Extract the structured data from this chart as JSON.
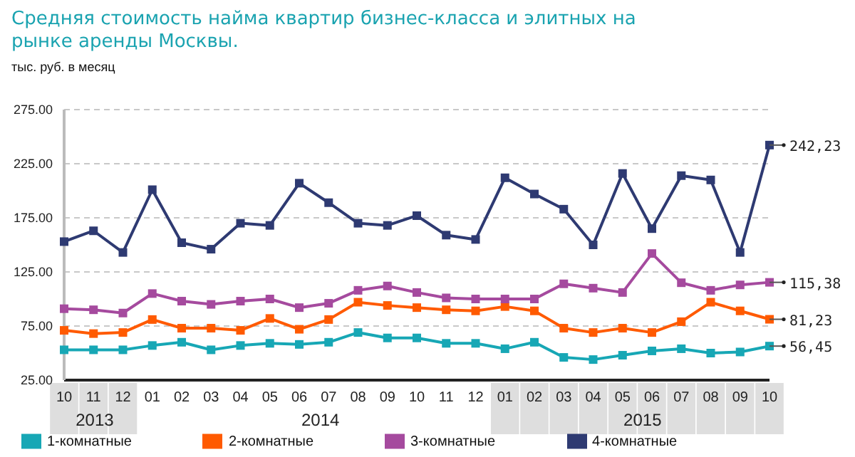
{
  "chart_data": {
    "type": "line",
    "title": "Средняя стоимость найма квартир бизнес-класса и элитных на рынке аренды Москвы.",
    "ylabel": "тыс. руб. в месяц",
    "categories": [
      "10",
      "11",
      "12",
      "01",
      "02",
      "03",
      "04",
      "05",
      "06",
      "07",
      "08",
      "09",
      "10",
      "11",
      "12",
      "01",
      "02",
      "03",
      "04",
      "05",
      "06",
      "07",
      "08",
      "09",
      "10"
    ],
    "annotations": [
      "2013",
      "2014",
      "2015"
    ],
    "ylim": [
      25,
      275
    ],
    "yticks": [
      {
        "value": 25,
        "label": "25.00"
      },
      {
        "value": 75,
        "label": "75.00"
      },
      {
        "value": 125,
        "label": "125.00"
      },
      {
        "value": 175,
        "label": "175.00"
      },
      {
        "value": 225,
        "label": "225.00"
      },
      {
        "value": 275,
        "label": "275.00"
      }
    ],
    "grid": "y",
    "legend": "bottom",
    "marker": "square",
    "line_style": "solid",
    "series": [
      {
        "name": "1-комнатные",
        "color": "#17a7b5",
        "values": [
          53,
          53,
          53,
          57,
          60,
          53,
          57,
          59,
          58,
          60,
          69,
          64,
          64,
          59,
          59,
          54,
          60,
          46,
          44,
          48,
          52,
          54,
          50,
          51,
          56.45
        ],
        "value_labels": [
          null,
          null,
          null,
          null,
          null,
          null,
          null,
          null,
          null,
          null,
          null,
          null,
          null,
          null,
          null,
          null,
          null,
          null,
          null,
          null,
          null,
          null,
          null,
          null,
          "56,45"
        ]
      },
      {
        "name": "2-комнатные",
        "color": "#ff5a00",
        "values": [
          71,
          68,
          69,
          81,
          73,
          73,
          71,
          82,
          72,
          81,
          97,
          94,
          92,
          90,
          89,
          93,
          89,
          73,
          69,
          73,
          69,
          79,
          97,
          89,
          81.23
        ],
        "value_labels": [
          null,
          null,
          null,
          null,
          null,
          null,
          null,
          null,
          null,
          null,
          null,
          null,
          null,
          null,
          null,
          null,
          null,
          null,
          null,
          null,
          null,
          null,
          null,
          null,
          "81,23"
        ]
      },
      {
        "name": "3-комнатные",
        "color": "#a54a9e",
        "values": [
          91,
          90,
          87,
          105,
          98,
          95,
          98,
          100,
          92,
          96,
          108,
          112,
          106,
          101,
          100,
          100,
          100,
          114,
          110,
          106,
          142,
          115,
          108,
          113,
          115.38
        ],
        "value_labels": [
          null,
          null,
          null,
          null,
          null,
          null,
          null,
          null,
          null,
          null,
          null,
          null,
          null,
          null,
          null,
          null,
          null,
          null,
          null,
          null,
          null,
          null,
          null,
          null,
          "115,38"
        ]
      },
      {
        "name": "4-комнатные",
        "color": "#2e3a72",
        "values": [
          153,
          163,
          143,
          201,
          152,
          146,
          170,
          168,
          207,
          189,
          170,
          168,
          177,
          159,
          155,
          212,
          197,
          183,
          150,
          216,
          165,
          214,
          210,
          143,
          242.23
        ],
        "value_labels": [
          null,
          null,
          null,
          null,
          null,
          null,
          null,
          null,
          null,
          null,
          null,
          null,
          null,
          null,
          null,
          null,
          null,
          null,
          null,
          null,
          null,
          null,
          null,
          null,
          "242,23"
        ]
      }
    ]
  }
}
